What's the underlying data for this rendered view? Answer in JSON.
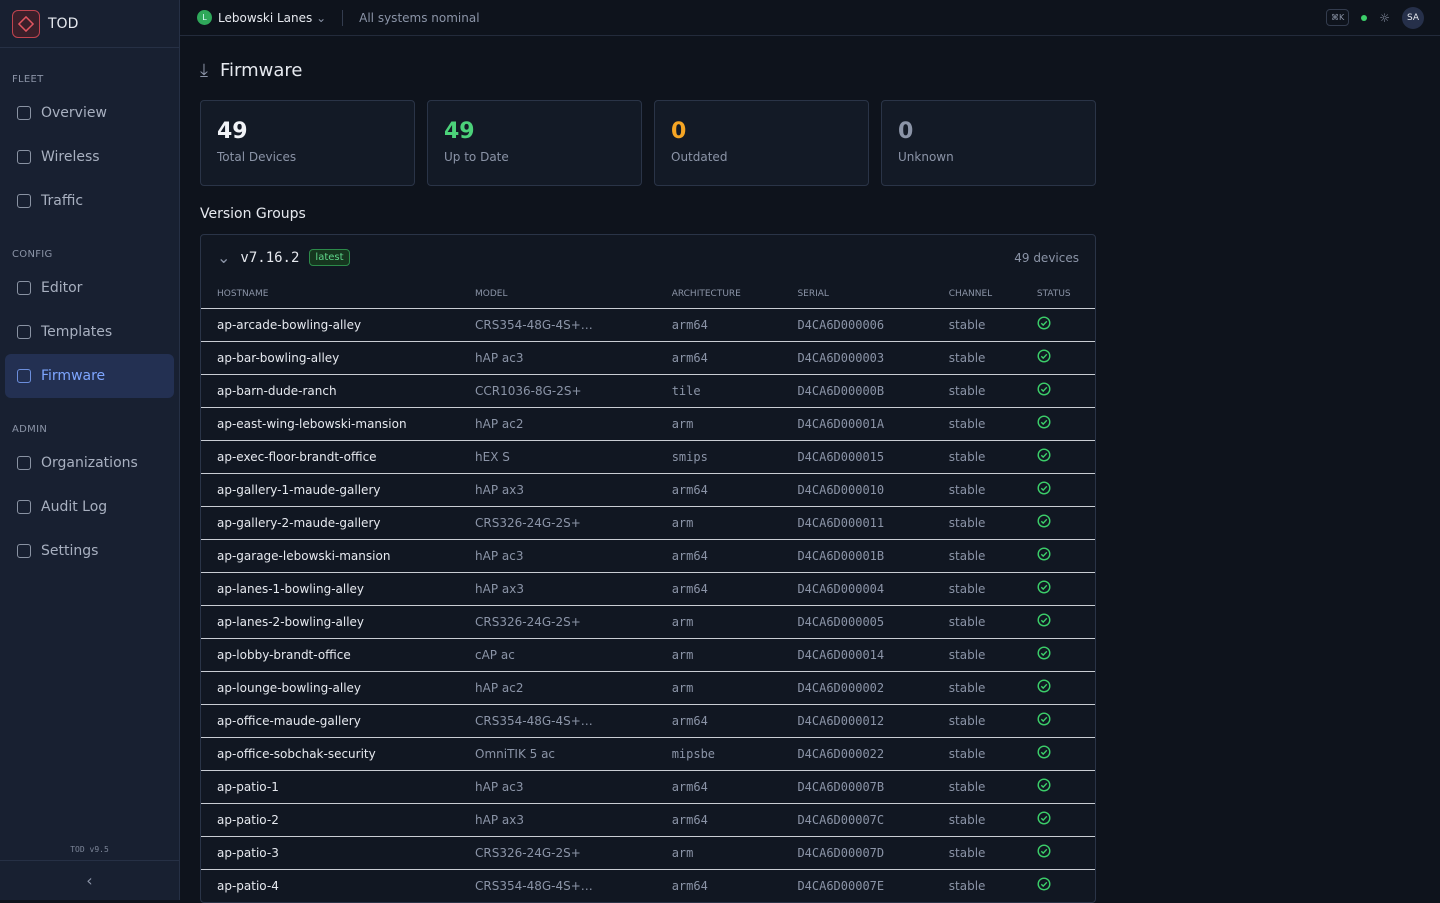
{
  "sidebar": {
    "brand": "TOD",
    "sections": [
      {
        "label": "FLEET",
        "items": [
          "Overview",
          "Wireless",
          "Traffic"
        ]
      },
      {
        "label": "CONFIG",
        "items": [
          "Editor",
          "Templates",
          "Firmware"
        ]
      },
      {
        "label": "ADMIN",
        "items": [
          "Organizations",
          "Audit Log",
          "Settings"
        ]
      }
    ],
    "version": "TOD v9.5"
  },
  "topbar": {
    "org_initial": "L",
    "org": "Lebowski Lanes",
    "status": "All systems nominal",
    "shortcut": "⌘K",
    "user": "SA"
  },
  "page": {
    "title": "Firmware"
  },
  "stats": [
    {
      "value": 49,
      "label": "Total Devices"
    },
    {
      "value": 49,
      "label": "Up to Date"
    },
    {
      "value": 0,
      "label": "Outdated"
    },
    {
      "value": 0,
      "label": "Unknown"
    }
  ],
  "section_title": "Version Groups",
  "group": {
    "version": "v7.16.2",
    "badge": "latest",
    "count": "49 devices",
    "columns": [
      "HOSTNAME",
      "MODEL",
      "ARCHITECTURE",
      "SERIAL",
      "CHANNEL",
      "STATUS"
    ],
    "rows": [
      [
        "ap-arcade-bowling-alley",
        "CRS354-48G-4S+…",
        "arm64",
        "D4CA6D000006",
        "stable"
      ],
      [
        "ap-bar-bowling-alley",
        "hAP ac3",
        "arm64",
        "D4CA6D000003",
        "stable"
      ],
      [
        "ap-barn-dude-ranch",
        "CCR1036-8G-2S+",
        "tile",
        "D4CA6D00000B",
        "stable"
      ],
      [
        "ap-east-wing-lebowski-mansion",
        "hAP ac2",
        "arm",
        "D4CA6D00001A",
        "stable"
      ],
      [
        "ap-exec-floor-brandt-office",
        "hEX S",
        "smips",
        "D4CA6D000015",
        "stable"
      ],
      [
        "ap-gallery-1-maude-gallery",
        "hAP ax3",
        "arm64",
        "D4CA6D000010",
        "stable"
      ],
      [
        "ap-gallery-2-maude-gallery",
        "CRS326-24G-2S+",
        "arm",
        "D4CA6D000011",
        "stable"
      ],
      [
        "ap-garage-lebowski-mansion",
        "hAP ac3",
        "arm64",
        "D4CA6D00001B",
        "stable"
      ],
      [
        "ap-lanes-1-bowling-alley",
        "hAP ax3",
        "arm64",
        "D4CA6D000004",
        "stable"
      ],
      [
        "ap-lanes-2-bowling-alley",
        "CRS326-24G-2S+",
        "arm",
        "D4CA6D000005",
        "stable"
      ],
      [
        "ap-lobby-brandt-office",
        "cAP ac",
        "arm",
        "D4CA6D000014",
        "stable"
      ],
      [
        "ap-lounge-bowling-alley",
        "hAP ac2",
        "arm",
        "D4CA6D000002",
        "stable"
      ],
      [
        "ap-office-maude-gallery",
        "CRS354-48G-4S+…",
        "arm64",
        "D4CA6D000012",
        "stable"
      ],
      [
        "ap-office-sobchak-security",
        "OmniTIK 5 ac",
        "mipsbe",
        "D4CA6D000022",
        "stable"
      ],
      [
        "ap-patio-1",
        "hAP ac3",
        "arm64",
        "D4CA6D00007B",
        "stable"
      ],
      [
        "ap-patio-2",
        "hAP ax3",
        "arm64",
        "D4CA6D00007C",
        "stable"
      ],
      [
        "ap-patio-3",
        "CRS326-24G-2S+",
        "arm",
        "D4CA6D00007D",
        "stable"
      ],
      [
        "ap-patio-4",
        "CRS354-48G-4S+…",
        "arm64",
        "D4CA6D00007E",
        "stable"
      ]
    ]
  }
}
